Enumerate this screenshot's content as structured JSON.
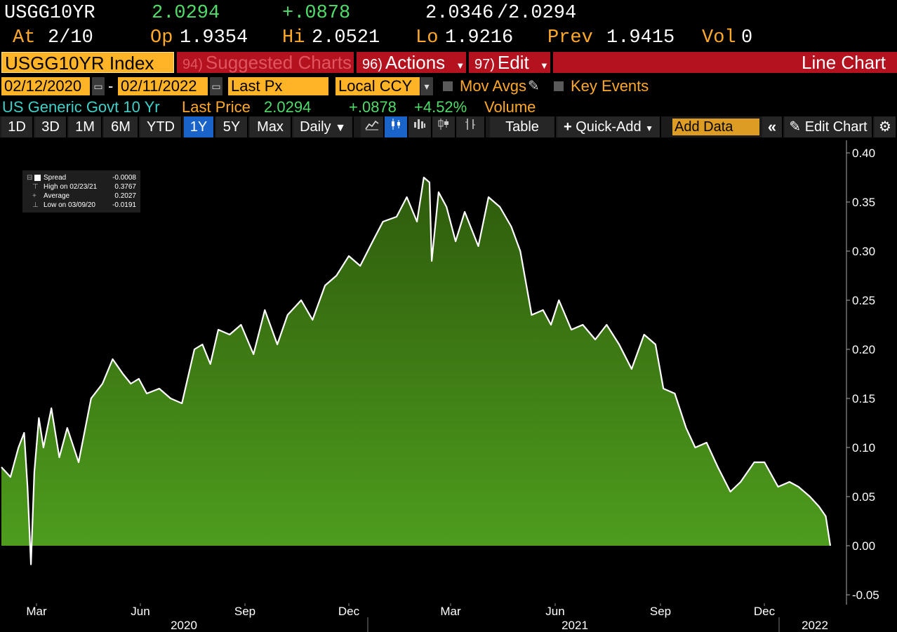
{
  "quote": {
    "ticker": "USGG10YR",
    "last": "2.0294",
    "change": "+.0878",
    "bid": "2.0346",
    "separator": "/",
    "ask": "2.0294",
    "at_label": "At",
    "at_value": "2/10",
    "open_label": "Op",
    "open_value": "1.9354",
    "high_label": "Hi",
    "high_value": "2.0521",
    "low_label": "Lo",
    "low_value": "1.9216",
    "prev_label": "Prev",
    "prev_value": "1.9415",
    "vol_label": "Vol",
    "vol_value": "0"
  },
  "titlebar": {
    "index": "USGG10YR Index",
    "suggested_num": "94)",
    "suggested": "Suggested Charts",
    "actions_num": "96)",
    "actions": "Actions",
    "edit_num": "97)",
    "edit": "Edit",
    "chart_type": "Line Chart"
  },
  "controls": {
    "start_date": "02/12/2020",
    "dash": "-",
    "end_date": "02/11/2022",
    "field": "Last Px",
    "currency": "Local CCY",
    "mov_avgs": "Mov Avgs",
    "key_events": "Key Events"
  },
  "info": {
    "security": "US Generic Govt 10 Yr",
    "last_price_label": "Last Price",
    "last_price": "2.0294",
    "change": "+.0878",
    "change_pct": "+4.52%",
    "volume_label": "Volume"
  },
  "toolbar": {
    "periods": [
      "1D",
      "3D",
      "1M",
      "6M",
      "YTD",
      "1Y",
      "5Y",
      "Max"
    ],
    "active_period": "1Y",
    "frequency": "Daily",
    "table": "Table",
    "quick_add": "Quick-Add",
    "add_data_placeholder": "Add Data",
    "edit_chart": "Edit Chart"
  },
  "legend": {
    "series_label": "Spread",
    "series_value": "-0.0008",
    "high_label": "High on 02/23/21",
    "high_value": "0.3767",
    "avg_label": "Average",
    "avg_value": "0.2027",
    "low_label": "Low on 03/09/20",
    "low_value": "-0.0191"
  },
  "colors": {
    "accent_orange": "#ffb326",
    "positive_green": "#4fdc6a",
    "title_red": "#b4121f",
    "active_blue": "#1a63c9",
    "area_fill_top": "#2e5a0c",
    "area_fill_bottom": "#4fa01e",
    "line": "#ffffff"
  },
  "chart_data": {
    "type": "area",
    "ylim": [
      -0.05,
      0.4
    ],
    "y_ticks": [
      "0.40",
      "0.35",
      "0.30",
      "0.25",
      "0.20",
      "0.15",
      "0.10",
      "0.05",
      "0.00",
      "-0.05"
    ],
    "x_month_labels": [
      "Mar",
      "Jun",
      "Sep",
      "Dec",
      "Mar",
      "Jun",
      "Sep",
      "Dec"
    ],
    "x_year_labels": [
      "2020",
      "2021",
      "2022"
    ],
    "grid": false,
    "series": [
      {
        "name": "Spread",
        "x": [
          "2020-02-12",
          "2020-02-20",
          "2020-02-27",
          "2020-03-03",
          "2020-03-06",
          "2020-03-09",
          "2020-03-12",
          "2020-03-16",
          "2020-03-20",
          "2020-03-27",
          "2020-04-03",
          "2020-04-10",
          "2020-04-20",
          "2020-05-01",
          "2020-05-11",
          "2020-05-20",
          "2020-05-29",
          "2020-06-05",
          "2020-06-12",
          "2020-06-19",
          "2020-06-30",
          "2020-07-10",
          "2020-07-20",
          "2020-07-31",
          "2020-08-07",
          "2020-08-14",
          "2020-08-21",
          "2020-08-31",
          "2020-09-10",
          "2020-09-21",
          "2020-10-01",
          "2020-10-12",
          "2020-10-21",
          "2020-11-02",
          "2020-11-12",
          "2020-11-23",
          "2020-12-03",
          "2020-12-14",
          "2020-12-24",
          "2021-01-04",
          "2021-01-13",
          "2021-01-25",
          "2021-02-03",
          "2021-02-12",
          "2021-02-18",
          "2021-02-23",
          "2021-02-25",
          "2021-03-03",
          "2021-03-10",
          "2021-03-18",
          "2021-03-26",
          "2021-04-07",
          "2021-04-16",
          "2021-04-26",
          "2021-05-06",
          "2021-05-14",
          "2021-05-24",
          "2021-06-03",
          "2021-06-10",
          "2021-06-17",
          "2021-06-28",
          "2021-07-08",
          "2021-07-19",
          "2021-07-29",
          "2021-08-09",
          "2021-08-20",
          "2021-08-31",
          "2021-09-10",
          "2021-09-17",
          "2021-09-27",
          "2021-10-07",
          "2021-10-15",
          "2021-10-25",
          "2021-11-04",
          "2021-11-15",
          "2021-11-24",
          "2021-12-06",
          "2021-12-15",
          "2021-12-27",
          "2022-01-06",
          "2022-01-14",
          "2022-01-24",
          "2022-02-01",
          "2022-02-07",
          "2022-02-11"
        ],
        "values": [
          0.08,
          0.07,
          0.1,
          0.115,
          0.06,
          -0.019,
          0.075,
          0.13,
          0.1,
          0.14,
          0.09,
          0.12,
          0.085,
          0.15,
          0.165,
          0.19,
          0.175,
          0.165,
          0.17,
          0.155,
          0.16,
          0.15,
          0.145,
          0.2,
          0.205,
          0.185,
          0.22,
          0.215,
          0.225,
          0.195,
          0.24,
          0.205,
          0.235,
          0.25,
          0.23,
          0.265,
          0.275,
          0.295,
          0.285,
          0.31,
          0.33,
          0.335,
          0.355,
          0.33,
          0.375,
          0.37,
          0.29,
          0.36,
          0.345,
          0.31,
          0.34,
          0.305,
          0.355,
          0.345,
          0.325,
          0.3,
          0.235,
          0.24,
          0.225,
          0.25,
          0.22,
          0.225,
          0.21,
          0.225,
          0.205,
          0.18,
          0.215,
          0.205,
          0.16,
          0.155,
          0.12,
          0.1,
          0.105,
          0.08,
          0.055,
          0.065,
          0.085,
          0.085,
          0.06,
          0.065,
          0.06,
          0.05,
          0.04,
          0.03,
          0.0
        ]
      }
    ]
  }
}
